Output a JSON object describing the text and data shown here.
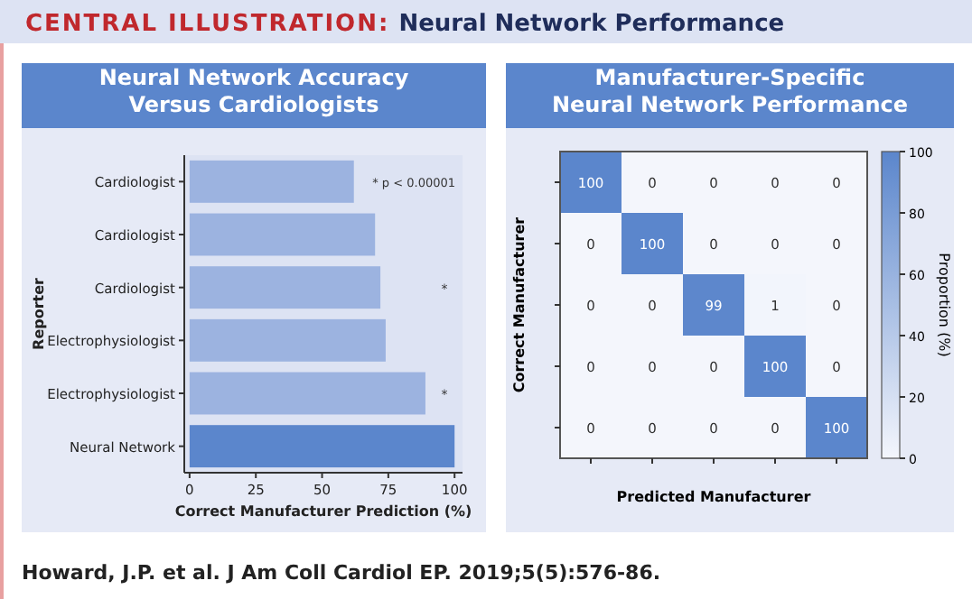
{
  "chart_data": [
    {
      "type": "other",
      "title": "CENTRAL ILLUSTRATION:",
      "subtitle": "Neural Network Performance",
      "annotations": [
        "Howard, J.P. et al. J Am Coll Cardiol EP. 2019;5(5):576-86."
      ]
    },
    {
      "type": "bar",
      "orientation": "horizontal",
      "title": "Neural Network Accuracy Versus Cardiologists",
      "categories": [
        "Cardiologist",
        "Cardiologist",
        "Cardiologist",
        "Electrophysiologist",
        "Electrophysiologist",
        "Neural Network"
      ],
      "values": [
        62,
        70,
        72,
        74,
        89,
        100
      ],
      "colors": [
        "#9cb3e0",
        "#9cb3e0",
        "#9cb3e0",
        "#9cb3e0",
        "#9cb3e0",
        "#5b86cc"
      ],
      "xlim": [
        -2,
        103
      ],
      "xticks": [
        0,
        25,
        50,
        75,
        100
      ],
      "xlabel": "Correct Manufacturer Prediction (%)",
      "ylabel": "Reporter",
      "value_labels": [
        null,
        null,
        "*",
        null,
        "*",
        null
      ],
      "annotations": [
        "* p < 0.00001"
      ]
    },
    {
      "type": "heatmap",
      "title": "Manufacturer-Specific Neural Network Performance",
      "categories": [
        null,
        null,
        null,
        null,
        null
      ],
      "y_categories": [
        null,
        null,
        null,
        null,
        null
      ],
      "cells": [
        [
          100,
          0,
          0,
          0,
          0
        ],
        [
          0,
          100,
          0,
          0,
          0
        ],
        [
          0,
          0,
          99,
          1,
          0
        ],
        [
          0,
          0,
          0,
          100,
          0
        ],
        [
          0,
          0,
          0,
          0,
          100
        ]
      ],
      "data_labels": true,
      "clim": [
        0,
        100
      ],
      "cticks": [
        0,
        20,
        40,
        60,
        80,
        100
      ],
      "clabel": "Proportion (%)",
      "xlabel": "Predicted Manufacturer",
      "ylabel": "Correct Manufacturer"
    }
  ]
}
